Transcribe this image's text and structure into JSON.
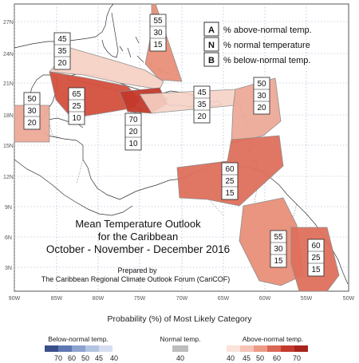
{
  "map": {
    "lat_labels": [
      "27N",
      "24N",
      "21N",
      "18N",
      "15N",
      "12N",
      "9N",
      "6N",
      "3N"
    ],
    "lon_labels": [
      "90W",
      "85W",
      "80W",
      "75W",
      "70W",
      "65W",
      "60W",
      "55W",
      "50W"
    ]
  },
  "title": {
    "line1": "Mean Temperature Outlook",
    "line2": "for the Caribbean",
    "line3": "October - November - December 2016",
    "prepared1": "Prepared by",
    "prepared2": "The Caribbean Regional Climate Outlook Forum (CariCOF)"
  },
  "key": {
    "rows": [
      {
        "letter": "A",
        "text": "% above-normal temp."
      },
      {
        "letter": "N",
        "text": "% normal temperature"
      },
      {
        "letter": "B",
        "text": "% below-normal temp."
      }
    ]
  },
  "regions": [
    {
      "name": "bahamas-north",
      "above": "55",
      "normal": "30",
      "below": "15",
      "color": "#e8907a"
    },
    {
      "name": "bahamas-cuba-west",
      "above": "45",
      "normal": "35",
      "below": "20",
      "color": "#f6d2c6"
    },
    {
      "name": "cuba-central",
      "above": "65",
      "normal": "25",
      "below": "10",
      "color": "#d4503e"
    },
    {
      "name": "jamaica",
      "above": "70",
      "normal": "20",
      "below": "10",
      "color": "#c43a2c"
    },
    {
      "name": "hispaniola-pr",
      "above": "45",
      "normal": "35",
      "below": "20",
      "color": "#f6d2c6"
    },
    {
      "name": "leeward-islands",
      "above": "50",
      "normal": "30",
      "below": "20",
      "color": "#eeaa98"
    },
    {
      "name": "belize",
      "above": "50",
      "normal": "30",
      "below": "20",
      "color": "#eeaa98"
    },
    {
      "name": "abc-islands",
      "above": "60",
      "normal": "25",
      "below": "15",
      "color": "#df705c"
    },
    {
      "name": "guyana",
      "above": "55",
      "normal": "30",
      "below": "15",
      "color": "#e8907a"
    },
    {
      "name": "french-guiana",
      "above": "60",
      "normal": "25",
      "below": "15",
      "color": "#df705c"
    }
  ],
  "colorbar": {
    "title": "Probability (%) of Most Likely Category",
    "below": {
      "label": "Below-normal temp.",
      "ticks": [
        "70",
        "60",
        "50",
        "45",
        "40"
      ],
      "colors": [
        "#3a4f8a",
        "#5f78b3",
        "#8ca2cf",
        "#b3c3e2",
        "#d6dff0"
      ]
    },
    "normal": {
      "label": "Normal temp.",
      "ticks": [
        "40"
      ],
      "colors": [
        "#bdbdbd"
      ]
    },
    "above": {
      "label": "Above-normal temp.",
      "ticks": [
        "40",
        "45",
        "50",
        "60",
        "70"
      ],
      "colors": [
        "#fbe2da",
        "#f6c4b6",
        "#ec9b87",
        "#dc6654",
        "#c43a2c",
        "#a8231b"
      ]
    }
  }
}
